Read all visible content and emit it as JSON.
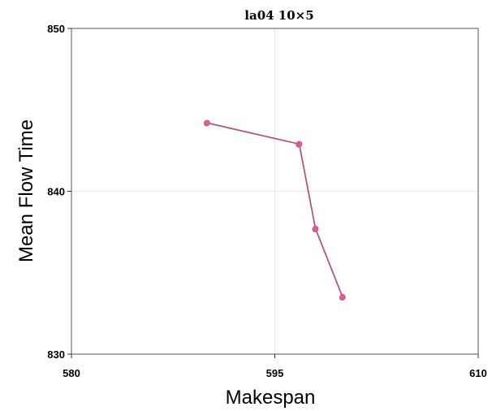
{
  "chart_data": {
    "type": "line",
    "title": "la04 10×5",
    "xlabel": "Makespan",
    "ylabel": "Mean Flow Time",
    "xlim": [
      580,
      610
    ],
    "ylim": [
      830,
      850
    ],
    "xticks": [
      580,
      595,
      610
    ],
    "yticks": [
      830,
      840,
      850
    ],
    "grid": true,
    "series": [
      {
        "color": "#555555",
        "points": [
          [
            590.0,
            844.2
          ],
          [
            596.8,
            842.9
          ],
          [
            598.0,
            837.7
          ],
          [
            600.0,
            833.5
          ]
        ]
      },
      {
        "color": "#d6408a",
        "points": [
          [
            590.0,
            844.2
          ],
          [
            596.8,
            842.9
          ],
          [
            598.0,
            837.7
          ],
          [
            600.0,
            833.5
          ]
        ]
      }
    ],
    "marker_color": "#e65a9a"
  }
}
